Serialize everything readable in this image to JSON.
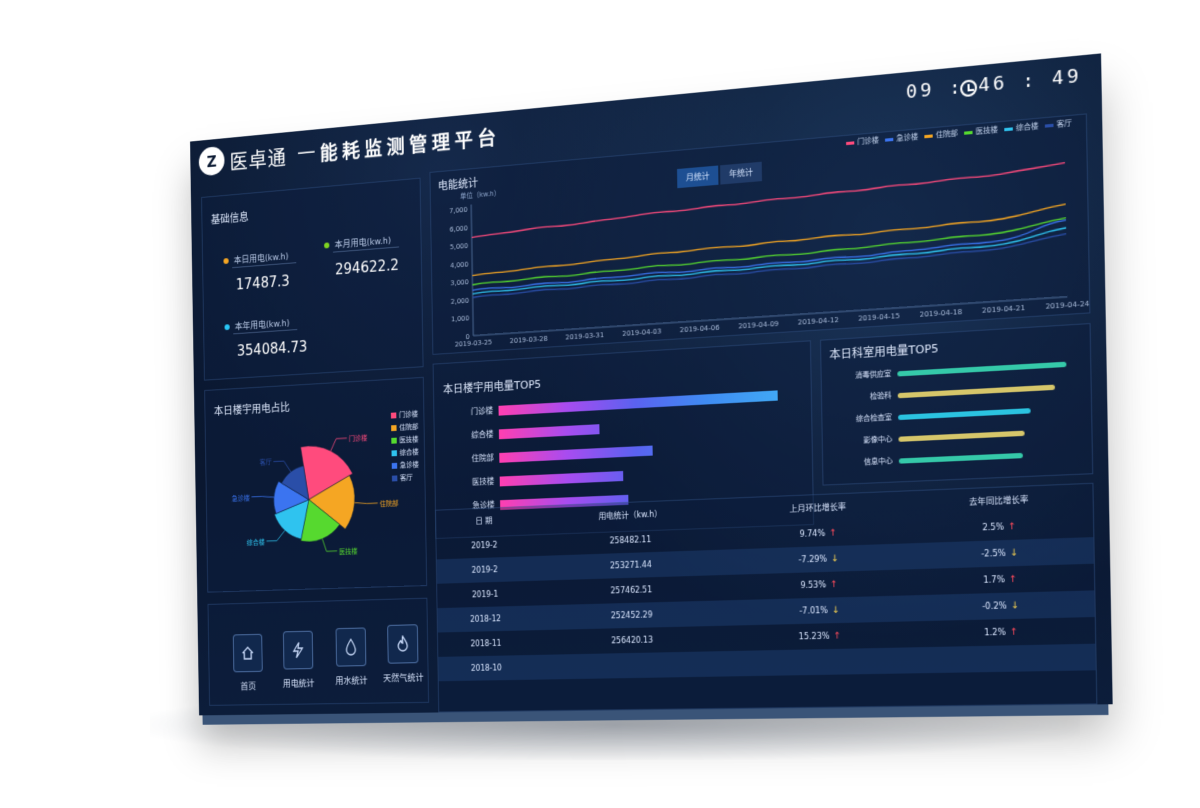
{
  "header": {
    "logo": "Z",
    "brand": "医卓通",
    "dash": "—",
    "title": "能耗监测管理平台",
    "clock": "09 : 46 : 49"
  },
  "basic_info": {
    "title": "基础信息",
    "stats": [
      {
        "label": "本日用电(kw.h)",
        "value": "17487.3",
        "color": "#f5a623"
      },
      {
        "label": "本月用电(kw.h)",
        "value": "294622.2",
        "color": "#7ed321"
      },
      {
        "label": "本年用电(kw.h)",
        "value": "354084.73",
        "color": "#29c6f6"
      }
    ]
  },
  "pie_panel": {
    "title": "本日楼宇用电占比",
    "legend": [
      {
        "label": "门诊楼",
        "color": "#ff4b7d"
      },
      {
        "label": "住院部",
        "color": "#f5a623"
      },
      {
        "label": "医技楼",
        "color": "#56d92f"
      },
      {
        "label": "综合楼",
        "color": "#2fc3ef"
      },
      {
        "label": "急诊楼",
        "color": "#3b74f0"
      },
      {
        "label": "客厅",
        "color": "#2a4ea8"
      }
    ],
    "callouts": [
      "门诊楼",
      "住院部",
      "医技楼",
      "综合楼",
      "急诊楼",
      "客厅"
    ]
  },
  "nav": [
    {
      "label": "首页",
      "icon": "home-icon"
    },
    {
      "label": "用电统计",
      "icon": "lightning-icon"
    },
    {
      "label": "用水统计",
      "icon": "water-drop-icon"
    },
    {
      "label": "天然气统计",
      "icon": "flame-icon"
    }
  ],
  "electric_stats": {
    "title": "电能统计",
    "unit": "单位（kw.h）",
    "tabs": [
      "月统计",
      "年统计"
    ],
    "legend": [
      {
        "label": "门诊楼",
        "color": "#ff4b7d"
      },
      {
        "label": "急诊楼",
        "color": "#3b74f0"
      },
      {
        "label": "住院部",
        "color": "#f5a623"
      },
      {
        "label": "医技楼",
        "color": "#56d92f"
      },
      {
        "label": "综合楼",
        "color": "#2fc3ef"
      },
      {
        "label": "客厅",
        "color": "#2a4ea8"
      }
    ]
  },
  "building_tops": {
    "title": "本日楼宇用电量TOP5"
  },
  "dept_tops": {
    "title": "本日科室用电量TOP5"
  },
  "table": {
    "headers": [
      "日 期",
      "用电统计（kw.h）",
      "上月环比增长率",
      "去年同比增长率"
    ],
    "rows": [
      {
        "date": "2019-2",
        "usage": "258482.11",
        "mom": "9.74%",
        "mom_dir": "up",
        "yoy": "2.5%",
        "yoy_dir": "up"
      },
      {
        "date": "2019-2",
        "usage": "253271.44",
        "mom": "-7.29%",
        "mom_dir": "down",
        "yoy": "-2.5%",
        "yoy_dir": "down"
      },
      {
        "date": "2019-1",
        "usage": "257462.51",
        "mom": "9.53%",
        "mom_dir": "up",
        "yoy": "1.7%",
        "yoy_dir": "up"
      },
      {
        "date": "2018-12",
        "usage": "252452.29",
        "mom": "-7.01%",
        "mom_dir": "down",
        "yoy": "-0.2%",
        "yoy_dir": "down"
      },
      {
        "date": "2018-11",
        "usage": "256420.13",
        "mom": "15.23%",
        "mom_dir": "up",
        "yoy": "1.2%",
        "yoy_dir": "up"
      },
      {
        "date": "2018-10",
        "usage": "",
        "mom": "",
        "mom_dir": "",
        "yoy": "",
        "yoy_dir": ""
      }
    ]
  },
  "chart_data": [
    {
      "type": "line",
      "title": "电能统计",
      "ylabel": "单位（kw.h）",
      "ylim": [
        0,
        7000
      ],
      "yticks": [
        "0",
        "1,000",
        "2,000",
        "3,000",
        "4,000",
        "5,000",
        "6,000",
        "7,000"
      ],
      "x": [
        "2019-03-25",
        "2019-03-28",
        "2019-03-31",
        "2019-04-03",
        "2019-04-06",
        "2019-04-09",
        "2019-04-12",
        "2019-04-15",
        "2019-04-18",
        "2019-04-21",
        "2019-04-24"
      ],
      "grid": false,
      "legend_position": "top-right",
      "series": [
        {
          "name": "门诊楼",
          "color": "#ff4b7d",
          "values": [
            5400,
            5600,
            5700,
            5900,
            6000,
            6100,
            6200,
            6300,
            6400,
            6500,
            6800
          ]
        },
        {
          "name": "急诊楼",
          "color": "#3b74f0",
          "values": [
            2500,
            2550,
            2600,
            2700,
            2700,
            2750,
            2800,
            2850,
            3000,
            3100,
            3900
          ]
        },
        {
          "name": "住院部",
          "color": "#f5a623",
          "values": [
            3300,
            3450,
            3550,
            3700,
            3800,
            3850,
            3950,
            4000,
            4100,
            4200,
            4700
          ]
        },
        {
          "name": "医技楼",
          "color": "#56d92f",
          "values": [
            2800,
            2900,
            2950,
            3050,
            3100,
            3150,
            3200,
            3300,
            3400,
            3500,
            4000
          ]
        },
        {
          "name": "综合楼",
          "color": "#2fc3ef",
          "values": [
            2300,
            2400,
            2450,
            2500,
            2550,
            2600,
            2650,
            2700,
            2800,
            2900,
            3500
          ]
        },
        {
          "name": "客厅",
          "color": "#2a4ea8",
          "values": [
            2100,
            2200,
            2250,
            2300,
            2350,
            2400,
            2450,
            2500,
            2600,
            2700,
            3200
          ]
        }
      ]
    },
    {
      "type": "pie",
      "title": "本日楼宇用电占比",
      "categories": [
        "门诊楼",
        "住院部",
        "医技楼",
        "综合楼",
        "急诊楼",
        "客厅"
      ],
      "values": [
        20,
        18,
        18,
        16,
        14,
        14
      ],
      "colors": [
        "#ff4b7d",
        "#f5a623",
        "#56d92f",
        "#2fc3ef",
        "#3b74f0",
        "#2a4ea8"
      ],
      "legend_position": "right"
    },
    {
      "type": "bar",
      "title": "本日楼宇用电量TOP5",
      "orientation": "horizontal",
      "categories": [
        "门诊楼",
        "综合楼",
        "住院部",
        "医技楼",
        "急诊楼"
      ],
      "values": [
        100,
        37,
        56,
        45,
        47
      ]
    },
    {
      "type": "bar",
      "title": "本日科室用电量TOP5",
      "orientation": "horizontal",
      "categories": [
        "消毒供应室",
        "检验科",
        "综合检查室",
        "影像中心",
        "信息中心"
      ],
      "values": [
        100,
        93,
        79,
        75,
        74
      ],
      "colors": [
        "#35c9a9",
        "#d6c66a",
        "#2bc3e0",
        "#d6c66a",
        "#35c9a9"
      ]
    }
  ]
}
